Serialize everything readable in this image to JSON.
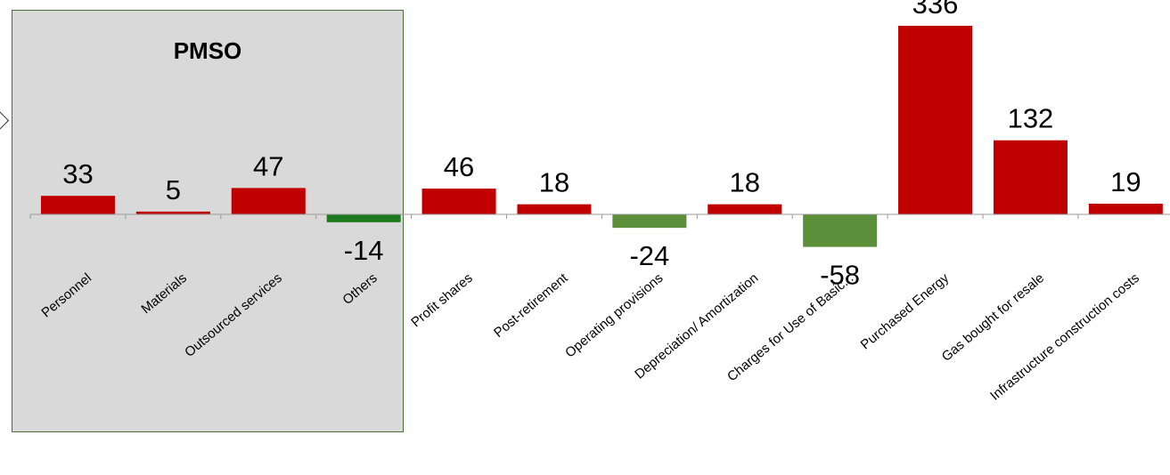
{
  "group_box": {
    "title": "PMSO"
  },
  "colors": {
    "positive": "#c00000",
    "negative_pmso": "#1e7a1e",
    "negative": "#5b8f3a",
    "group_box_bg": "#d9d9d9"
  },
  "chart_data": {
    "type": "bar",
    "title": "",
    "xlabel": "",
    "ylabel": "",
    "categories": [
      "Personnel",
      "Materials",
      "Outsourced services",
      "Others",
      "Profit shares",
      "Post-retirement",
      "Operating provisions",
      "Depreciation/ Amortization",
      "Charges for Use of Basic...",
      "Purchased Energy",
      "Gas bought for resale",
      "Infrastructure construction costs"
    ],
    "values": [
      33,
      5,
      47,
      -14,
      46,
      18,
      -24,
      18,
      -58,
      336,
      132,
      19
    ],
    "value_labels": [
      "33",
      "5",
      "47",
      "-14",
      "46",
      "18",
      "-24",
      "18",
      "-58",
      "336",
      "132",
      "19"
    ],
    "grid": false,
    "legend": "none"
  }
}
